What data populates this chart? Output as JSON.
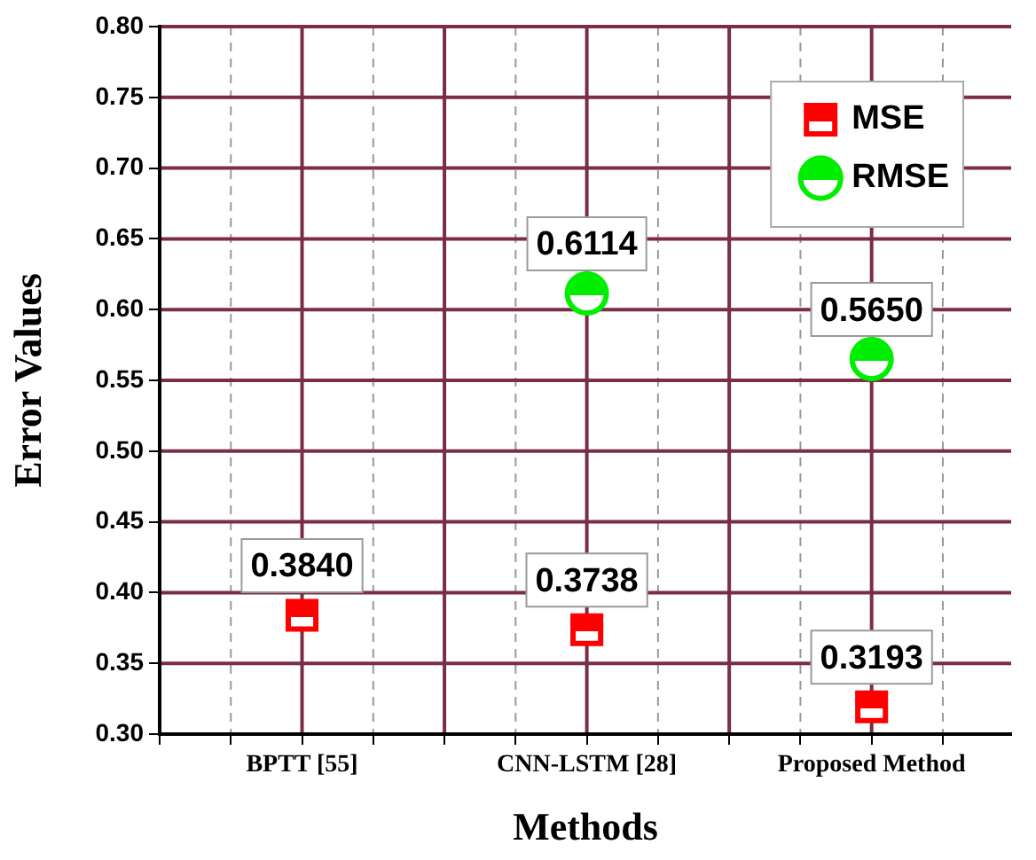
{
  "chart_data": {
    "type": "scatter",
    "xlabel": "Methods",
    "ylabel": "Error Values",
    "categories": [
      "BPTT [55]",
      "CNN-LSTM [28]",
      "Proposed Method"
    ],
    "series": [
      {
        "name": "MSE",
        "color": "#ff0000",
        "marker": "square",
        "values": [
          0.384,
          0.3738,
          0.3193
        ],
        "value_labels": [
          "0.3840",
          "0.3738",
          "0.3193"
        ]
      },
      {
        "name": "RMSE",
        "color": "#00ee00",
        "marker": "circle",
        "values": [
          null,
          0.6114,
          0.565
        ],
        "value_labels": [
          null,
          "0.6114",
          "0.5650"
        ]
      }
    ],
    "ylim": [
      0.3,
      0.8
    ],
    "yticks": [
      {
        "value": 0.3,
        "label": "0.30"
      },
      0.35,
      {
        "value": 0.4,
        "label": "0.40"
      },
      0.45,
      {
        "value": 0.5,
        "label": "0.50"
      },
      0.55,
      {
        "value": 0.6,
        "label": "0.60"
      },
      0.65,
      {
        "value": 0.7,
        "label": "0.70"
      },
      0.75,
      {
        "value": 0.8,
        "label": "0.80"
      }
    ],
    "grid": true,
    "legend": "top right"
  }
}
